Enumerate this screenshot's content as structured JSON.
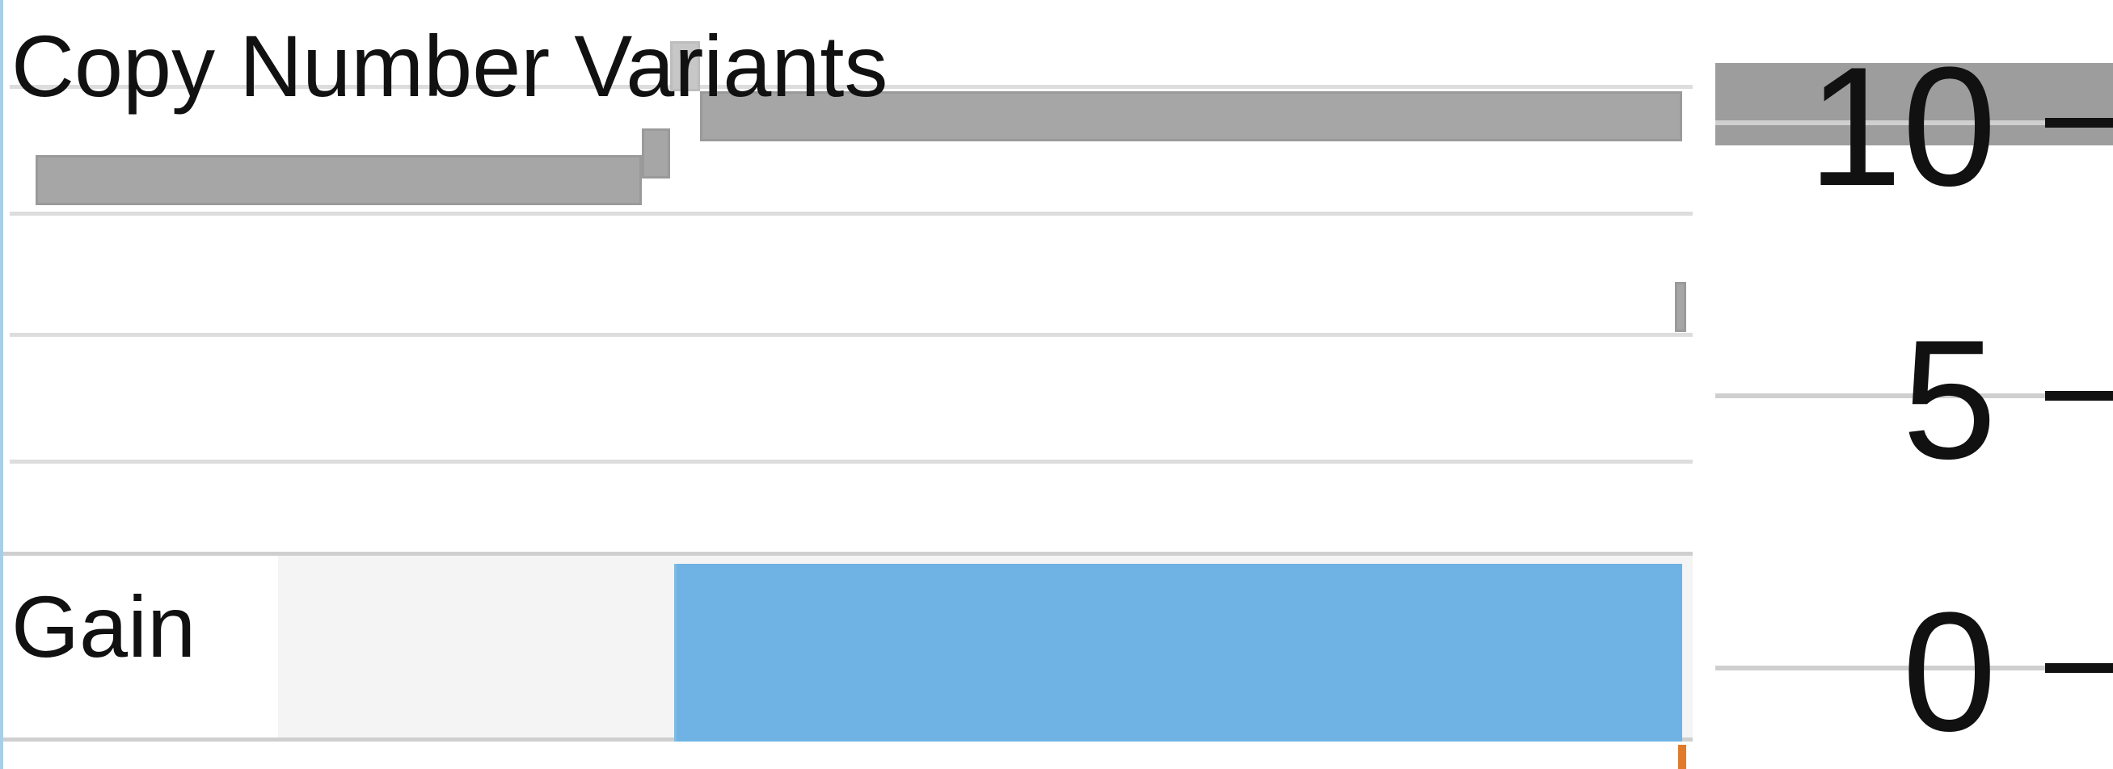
{
  "track": {
    "title": "Copy Number Variants",
    "range": [
      0,
      2090
    ],
    "gridline_values": [
      10,
      8,
      6,
      4
    ],
    "segments": [
      {
        "start": 40,
        "end": 790,
        "value": 6.6
      },
      {
        "start": 790,
        "end": 825,
        "value": 7.4
      },
      {
        "start": 825,
        "end": 862,
        "value": 10.0,
        "faint": true
      },
      {
        "start": 862,
        "end": 2077,
        "value": 8.5
      },
      {
        "start": 2068,
        "end": 2082,
        "value": 2.8
      }
    ]
  },
  "gain": {
    "label": "Gain",
    "range": [
      0,
      2090
    ],
    "blocks": [
      {
        "start": 830,
        "end": 2077
      }
    ]
  },
  "axis": {
    "ticks": [
      {
        "value": 10,
        "label": "10"
      },
      {
        "value": 5,
        "label": "5"
      },
      {
        "value": 0,
        "label": "0"
      }
    ]
  },
  "colors": {
    "segment": "#a6a6a6",
    "gain": "#6fb3e4",
    "marker": "#e27a2c"
  }
}
